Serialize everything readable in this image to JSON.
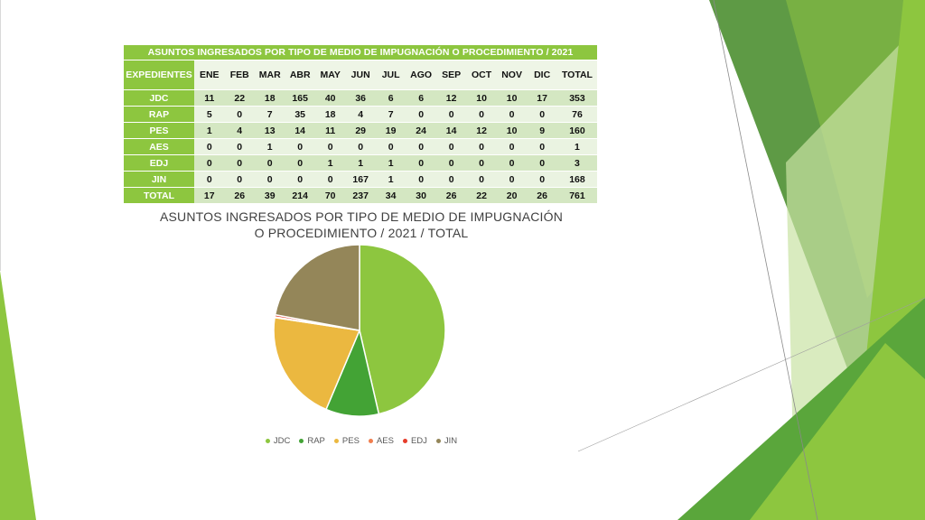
{
  "table": {
    "title": "ASUNTOS INGRESADOS POR TIPO DE MEDIO DE IMPUGNACIÓN O PROCEDIMIENTO / 2021",
    "header_first": "EXPEDIENTES",
    "months": [
      "ENE",
      "FEB",
      "MAR",
      "ABR",
      "MAY",
      "JUN",
      "JUL",
      "AGO",
      "SEP",
      "OCT",
      "NOV",
      "DIC",
      "TOTAL"
    ],
    "rows": [
      {
        "label": "JDC",
        "values": [
          "11",
          "22",
          "18",
          "165",
          "40",
          "36",
          "6",
          "6",
          "12",
          "10",
          "10",
          "17",
          "353"
        ]
      },
      {
        "label": "RAP",
        "values": [
          "5",
          "0",
          "7",
          "35",
          "18",
          "4",
          "7",
          "0",
          "0",
          "0",
          "0",
          "0",
          "76"
        ]
      },
      {
        "label": "PES",
        "values": [
          "1",
          "4",
          "13",
          "14",
          "11",
          "29",
          "19",
          "24",
          "14",
          "12",
          "10",
          "9",
          "160"
        ]
      },
      {
        "label": "AES",
        "values": [
          "0",
          "0",
          "1",
          "0",
          "0",
          "0",
          "0",
          "0",
          "0",
          "0",
          "0",
          "0",
          "1"
        ]
      },
      {
        "label": "EDJ",
        "values": [
          "0",
          "0",
          "0",
          "0",
          "1",
          "1",
          "1",
          "0",
          "0",
          "0",
          "0",
          "0",
          "3"
        ]
      },
      {
        "label": "JIN",
        "values": [
          "0",
          "0",
          "0",
          "0",
          "0",
          "167",
          "1",
          "0",
          "0",
          "0",
          "0",
          "0",
          "168"
        ]
      }
    ],
    "total_row": {
      "label": "TOTAL",
      "values": [
        "17",
        "26",
        "39",
        "214",
        "70",
        "237",
        "34",
        "30",
        "26",
        "22",
        "20",
        "26",
        "761"
      ]
    }
  },
  "chart_data": {
    "type": "pie",
    "title": "ASUNTOS INGRESADOS POR TIPO DE MEDIO DE IMPUGNACIÓN O PROCEDIMIENTO / 2021 / TOTAL",
    "title_lines": [
      "ASUNTOS INGRESADOS POR TIPO DE MEDIO DE IMPUGNACIÓN",
      "O PROCEDIMIENTO / 2021 / TOTAL"
    ],
    "categories": [
      "JDC",
      "RAP",
      "PES",
      "AES",
      "EDJ",
      "JIN"
    ],
    "values": [
      353,
      76,
      160,
      1,
      3,
      168
    ],
    "colors": [
      "#8dc63f",
      "#43a335",
      "#ebb840",
      "#f07e4e",
      "#e63c2a",
      "#948659"
    ],
    "legend_position": "bottom"
  }
}
